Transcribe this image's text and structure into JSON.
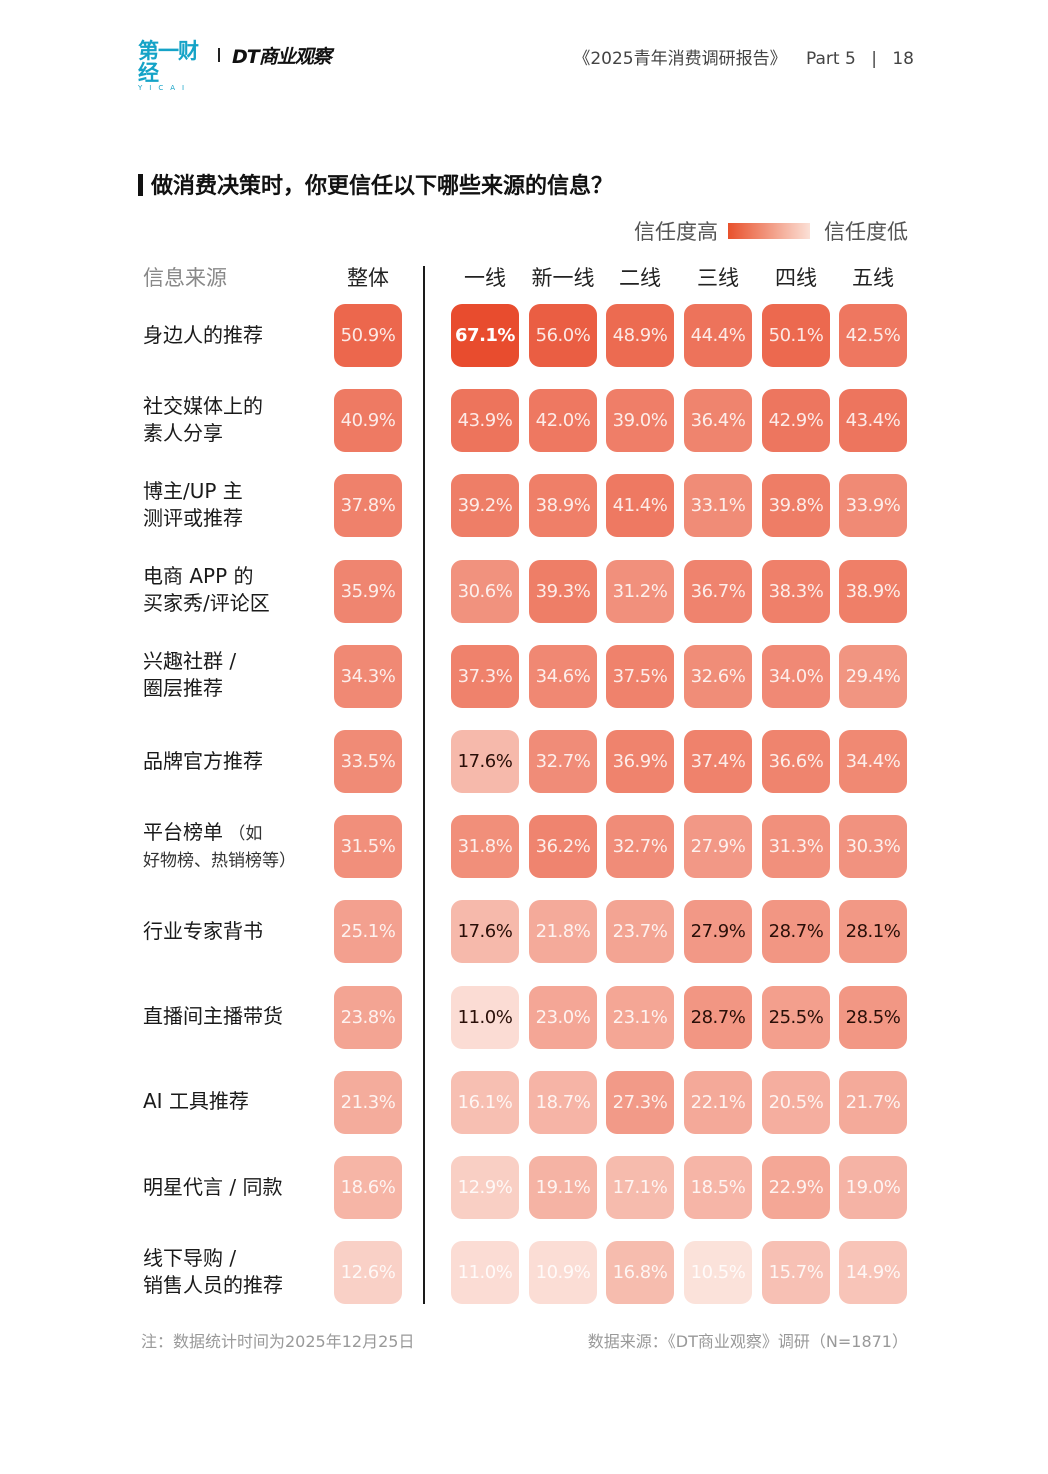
{
  "header": {
    "logo_yicai": "第一财经",
    "logo_yicai_sub": "YICAI",
    "logo_dt": "DT商业观察",
    "report_title": "《2025青年消费调研报告》",
    "part": "Part 5",
    "separator": "|",
    "page_number": "18"
  },
  "chart_data": {
    "type": "heatmap",
    "title": "做消费决策时，你更信任以下哪些来源的信息？",
    "legend": {
      "high_label": "信任度高",
      "low_label": "信任度低",
      "high_color": "#e8512c",
      "low_color": "#fbe0d6",
      "placement": "top-right"
    },
    "row_header": "信息来源",
    "columns": [
      "整体",
      "一线",
      "新一线",
      "二线",
      "三线",
      "四线",
      "五线"
    ],
    "rows": [
      {
        "label_lines": [
          "身边人的推荐"
        ],
        "values": [
          50.9,
          67.1,
          56.0,
          48.9,
          44.4,
          50.1,
          42.5
        ],
        "display": [
          "50.9%",
          "67.1%",
          "56.0%",
          "48.9%",
          "44.4%",
          "50.1%",
          "42.5%"
        ]
      },
      {
        "label_lines": [
          "社交媒体上的",
          "素人分享"
        ],
        "values": [
          40.9,
          43.9,
          42.0,
          39.0,
          36.4,
          42.9,
          43.4
        ],
        "display": [
          "40.9%",
          "43.9%",
          "42.0%",
          "39.0%",
          "36.4%",
          "42.9%",
          "43.4%"
        ]
      },
      {
        "label_lines": [
          "博主/UP 主",
          "测评或推荐"
        ],
        "values": [
          37.8,
          39.2,
          38.9,
          41.4,
          33.1,
          39.8,
          33.9
        ],
        "display": [
          "37.8%",
          "39.2%",
          "38.9%",
          "41.4%",
          "33.1%",
          "39.8%",
          "33.9%"
        ]
      },
      {
        "label_lines": [
          "电商 APP 的",
          "买家秀/评论区"
        ],
        "values": [
          35.9,
          30.6,
          39.3,
          31.2,
          36.7,
          38.3,
          38.9
        ],
        "display": [
          "35.9%",
          "30.6%",
          "39.3%",
          "31.2%",
          "36.7%",
          "38.3%",
          "38.9%"
        ]
      },
      {
        "label_lines": [
          "兴趣社群 /",
          "圈层推荐"
        ],
        "values": [
          34.3,
          37.3,
          34.6,
          37.5,
          32.6,
          34.0,
          29.4
        ],
        "display": [
          "34.3%",
          "37.3%",
          "34.6%",
          "37.5%",
          "32.6%",
          "34.0%",
          "29.4%"
        ]
      },
      {
        "label_lines": [
          "品牌官方推荐"
        ],
        "values": [
          33.5,
          17.6,
          32.7,
          36.9,
          37.4,
          36.6,
          34.4
        ],
        "display": [
          "33.5%",
          "17.6%",
          "32.7%",
          "36.9%",
          "37.4%",
          "36.6%",
          "34.4%"
        ]
      },
      {
        "label_lines": [
          "平台榜单",
          "好物榜、热销榜等）"
        ],
        "label_suffix": "（如",
        "values": [
          31.5,
          31.8,
          36.2,
          32.7,
          27.9,
          31.3,
          30.3
        ],
        "display": [
          "31.5%",
          "31.8%",
          "36.2%",
          "32.7%",
          "27.9%",
          "31.3%",
          "30.3%"
        ]
      },
      {
        "label_lines": [
          "行业专家背书"
        ],
        "values": [
          25.1,
          17.6,
          21.8,
          23.7,
          27.9,
          28.7,
          28.1
        ],
        "display": [
          "25.1%",
          "17.6%",
          "21.8%",
          "23.7%",
          "27.9%",
          "28.7%",
          "28.1%"
        ]
      },
      {
        "label_lines": [
          "直播间主播带货"
        ],
        "values": [
          23.8,
          11.0,
          23.0,
          23.1,
          28.7,
          25.5,
          28.5
        ],
        "display": [
          "23.8%",
          "11.0%",
          "23.0%",
          "23.1%",
          "28.7%",
          "25.5%",
          "28.5%"
        ]
      },
      {
        "label_lines": [
          "AI 工具推荐"
        ],
        "values": [
          21.3,
          16.1,
          18.7,
          27.3,
          22.1,
          20.5,
          21.7
        ],
        "display": [
          "21.3%",
          "16.1%",
          "18.7%",
          "27.3%",
          "22.1%",
          "20.5%",
          "21.7%"
        ]
      },
      {
        "label_lines": [
          "明星代言 / 同款"
        ],
        "values": [
          18.6,
          12.9,
          19.1,
          17.1,
          18.5,
          22.9,
          19.0
        ],
        "display": [
          "18.6%",
          "12.9%",
          "19.1%",
          "17.1%",
          "18.5%",
          "22.9%",
          "19.0%"
        ]
      },
      {
        "label_lines": [
          "线下导购 /",
          "销售人员的推荐"
        ],
        "values": [
          12.6,
          11.0,
          10.9,
          16.8,
          10.5,
          15.7,
          14.9
        ],
        "display": [
          "12.6%",
          "11.0%",
          "10.9%",
          "16.8%",
          "10.5%",
          "15.7%",
          "14.9%"
        ]
      }
    ],
    "dark_text_cells": [
      [
        0,
        1
      ],
      [
        5,
        1
      ],
      [
        7,
        1
      ],
      [
        7,
        4
      ],
      [
        7,
        5
      ],
      [
        7,
        6
      ],
      [
        8,
        1
      ],
      [
        8,
        4
      ],
      [
        8,
        5
      ],
      [
        8,
        6
      ]
    ]
  },
  "footer": {
    "note": "注：数据统计时间为2025年12月25日",
    "source": "数据来源：《DT商业观察》调研（N=1871）"
  }
}
